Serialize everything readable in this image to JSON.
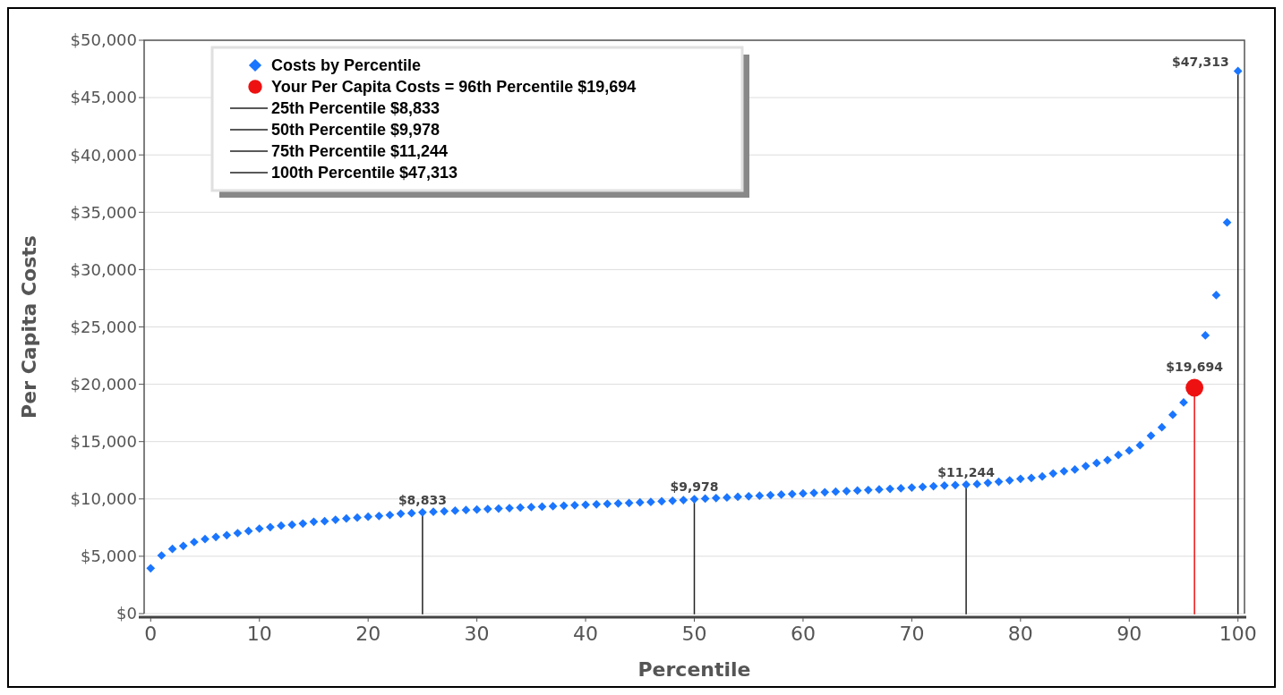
{
  "chart_data": {
    "type": "scatter",
    "xlabel": "Percentile",
    "ylabel": "Per Capita Costs",
    "xlim": [
      -0.6,
      100.6
    ],
    "ylim": [
      0,
      50000
    ],
    "xticks": [
      0,
      10,
      20,
      30,
      40,
      50,
      60,
      70,
      80,
      90,
      100
    ],
    "yticks": [
      {
        "value": 0,
        "label": "$0"
      },
      {
        "value": 5000,
        "label": "$5,000"
      },
      {
        "value": 10000,
        "label": "$10,000"
      },
      {
        "value": 15000,
        "label": "$15,000"
      },
      {
        "value": 20000,
        "label": "$20,000"
      },
      {
        "value": 25000,
        "label": "$25,000"
      },
      {
        "value": 30000,
        "label": "$30,000"
      },
      {
        "value": 35000,
        "label": "$35,000"
      },
      {
        "value": 40000,
        "label": "$40,000"
      },
      {
        "value": 45000,
        "label": "$45,000"
      },
      {
        "value": 50000,
        "label": "$50,000"
      }
    ],
    "grid": "y",
    "legend": "top left",
    "series": [
      {
        "name": "Costs by Percentile",
        "marker": "diamond",
        "color": "#1a75ff",
        "x": [
          0,
          1,
          2,
          3,
          4,
          5,
          6,
          7,
          8,
          9,
          10,
          11,
          12,
          13,
          14,
          15,
          16,
          17,
          18,
          19,
          20,
          21,
          22,
          23,
          24,
          25,
          26,
          27,
          28,
          29,
          30,
          31,
          32,
          33,
          34,
          35,
          36,
          37,
          38,
          39,
          40,
          41,
          42,
          43,
          44,
          45,
          46,
          47,
          48,
          49,
          50,
          51,
          52,
          53,
          54,
          55,
          56,
          57,
          58,
          59,
          60,
          61,
          62,
          63,
          64,
          65,
          66,
          67,
          68,
          69,
          70,
          71,
          72,
          73,
          74,
          75,
          76,
          77,
          78,
          79,
          80,
          81,
          82,
          83,
          84,
          85,
          86,
          87,
          88,
          89,
          90,
          91,
          92,
          93,
          94,
          95,
          96,
          97,
          98,
          99,
          100
        ],
        "values": [
          3950,
          5070,
          5640,
          5900,
          6240,
          6500,
          6680,
          6840,
          7020,
          7200,
          7410,
          7540,
          7670,
          7750,
          7850,
          8010,
          8060,
          8190,
          8290,
          8370,
          8450,
          8520,
          8600,
          8710,
          8760,
          8833,
          8880,
          8930,
          8980,
          9030,
          9070,
          9120,
          9160,
          9200,
          9250,
          9290,
          9330,
          9370,
          9410,
          9450,
          9490,
          9530,
          9570,
          9610,
          9650,
          9700,
          9740,
          9790,
          9840,
          9900,
          9978,
          10030,
          10080,
          10130,
          10180,
          10230,
          10280,
          10330,
          10380,
          10430,
          10480,
          10530,
          10580,
          10630,
          10680,
          10730,
          10780,
          10830,
          10880,
          10930,
          10990,
          11050,
          11110,
          11170,
          11210,
          11244,
          11300,
          11400,
          11500,
          11620,
          11750,
          11830,
          11960,
          12220,
          12420,
          12560,
          12870,
          13130,
          13390,
          13830,
          14220,
          14690,
          15520,
          16250,
          17340,
          18410,
          null,
          24260,
          27770,
          34110,
          47313
        ]
      },
      {
        "name": "Your Per Capita Costs = 96th Percentile $19,694",
        "marker": "circle",
        "color": "#ee1111",
        "x": [
          96
        ],
        "values": [
          19694
        ]
      },
      {
        "name": "25th Percentile  $8,833",
        "type": "line",
        "marker": "none",
        "color": "#222222",
        "x": [
          25,
          25
        ],
        "values": [
          0,
          8833
        ]
      },
      {
        "name": "50th Percentile  $9,978",
        "type": "line",
        "marker": "none",
        "color": "#222222",
        "x": [
          50,
          50
        ],
        "values": [
          0,
          9978
        ]
      },
      {
        "name": "75th Percentile  $11,244",
        "type": "line",
        "marker": "none",
        "color": "#222222",
        "x": [
          75,
          75
        ],
        "values": [
          0,
          11244
        ]
      },
      {
        "name": "100th Percentile  $47,313",
        "type": "line",
        "marker": "none",
        "color": "#222222",
        "x": [
          100,
          100
        ],
        "values": [
          0,
          47313
        ]
      },
      {
        "type": "line",
        "marker": "none",
        "color": "#ee1111",
        "x": [
          96,
          96
        ],
        "values": [
          0,
          19694
        ]
      }
    ],
    "annotations": [
      {
        "text": "$8,833",
        "x": 25,
        "y": 8833
      },
      {
        "text": "$9,978",
        "x": 50,
        "y": 9978
      },
      {
        "text": "$11,244",
        "x": 75,
        "y": 11244
      },
      {
        "text": "$19,694",
        "x": 96,
        "y": 19694
      },
      {
        "text": "$47,313",
        "x": 100,
        "y": 47313
      }
    ]
  }
}
